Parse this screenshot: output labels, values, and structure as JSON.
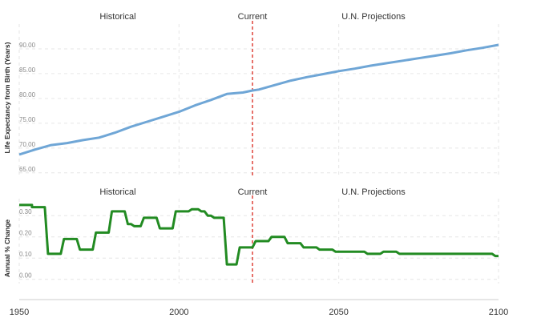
{
  "chart_data": [
    {
      "type": "line",
      "ylabel": "Life Expectancy from Birth (Years)",
      "section_labels": [
        "Historical",
        "Current",
        "U.N. Projections"
      ],
      "current_marker_year": 2023,
      "line_color": "#6fa6d6",
      "marker_color": "#d9261c",
      "grid": "dashed",
      "ylim": [
        64,
        95
      ],
      "yticks": [
        "65.00",
        "70.00",
        "75.00",
        "80.00",
        "85.00",
        "90.00"
      ],
      "series": [
        {
          "x": [
            1950,
            1955,
            1960,
            1965,
            1970,
            1975,
            1980,
            1985,
            1990,
            1995,
            2000,
            2005,
            2010,
            2015,
            2020,
            2023,
            2025,
            2030,
            2035,
            2040,
            2045,
            2050,
            2055,
            2060,
            2065,
            2070,
            2075,
            2080,
            2085,
            2090,
            2095,
            2100
          ],
          "values": [
            68.7,
            69.7,
            70.6,
            71.0,
            71.6,
            72.1,
            73.1,
            74.3,
            75.3,
            76.3,
            77.3,
            78.6,
            79.7,
            80.9,
            81.2,
            81.6,
            81.8,
            82.7,
            83.6,
            84.3,
            84.9,
            85.5,
            86.0,
            86.6,
            87.1,
            87.6,
            88.1,
            88.6,
            89.1,
            89.7,
            90.2,
            90.8
          ]
        }
      ]
    },
    {
      "type": "line",
      "ylabel": "Annual % Change",
      "section_labels": [
        "Historical",
        "Current",
        "U.N. Projections"
      ],
      "current_marker_year": 2023,
      "line_color": "#228b22",
      "marker_color": "#d9261c",
      "grid": "dashed",
      "ylim": [
        -0.02,
        0.38
      ],
      "yticks": [
        "0.00",
        "0.10",
        "0.20",
        "0.30"
      ],
      "xticks": [
        "1950",
        "2000",
        "2050",
        "2100"
      ],
      "xlim": [
        1950,
        2100
      ],
      "series": [
        {
          "x": [
            1950,
            1954,
            1954,
            1958,
            1959,
            1963,
            1964,
            1968,
            1969,
            1973,
            1974,
            1978,
            1979,
            1983,
            1984,
            1985,
            1986,
            1988,
            1989,
            1993,
            1994,
            1998,
            1999,
            2003,
            2004,
            2006,
            2007,
            2008,
            2009,
            2010,
            2011,
            2014,
            2015,
            2018,
            2019,
            2023,
            2024,
            2028,
            2029,
            2033,
            2034,
            2038,
            2039,
            2043,
            2044,
            2048,
            2049,
            2058,
            2059,
            2063,
            2064,
            2068,
            2069,
            2098,
            2099,
            2100
          ],
          "values": [
            0.35,
            0.35,
            0.34,
            0.34,
            0.12,
            0.12,
            0.19,
            0.19,
            0.14,
            0.14,
            0.22,
            0.22,
            0.32,
            0.32,
            0.26,
            0.26,
            0.25,
            0.25,
            0.29,
            0.29,
            0.24,
            0.24,
            0.32,
            0.32,
            0.33,
            0.33,
            0.32,
            0.32,
            0.3,
            0.3,
            0.29,
            0.29,
            0.07,
            0.07,
            0.15,
            0.15,
            0.18,
            0.18,
            0.2,
            0.2,
            0.17,
            0.17,
            0.15,
            0.15,
            0.14,
            0.14,
            0.13,
            0.13,
            0.12,
            0.12,
            0.13,
            0.13,
            0.12,
            0.12,
            0.11,
            0.11
          ]
        }
      ]
    }
  ]
}
